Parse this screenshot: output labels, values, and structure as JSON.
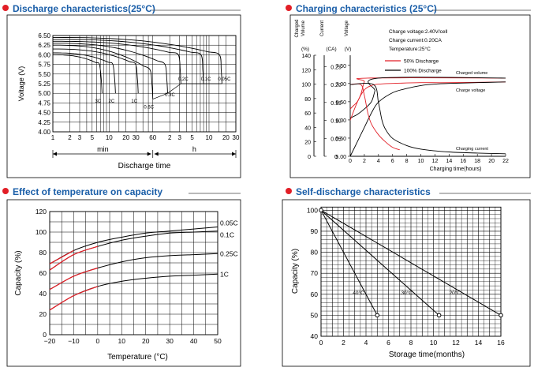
{
  "colors": {
    "title": "#1a5ea8",
    "bullet": "#e21e26",
    "curve_black": "#000000",
    "curve_red": "#e21e26",
    "grid": "#000000"
  },
  "panels": {
    "discharge": {
      "title": "Discharge characteristics(25°C)"
    },
    "charging": {
      "title": "Charging characteristics (25°C)"
    },
    "temperature": {
      "title": "Effect of temperature on capacity"
    },
    "self_discharge": {
      "title": "Self-discharge characteristics"
    }
  },
  "chart_data": [
    {
      "type": "line",
      "title": "Discharge characteristics(25°C)",
      "ylabel": "Voltage (V)",
      "xlabel": "Discharge time",
      "ylim": [
        4.0,
        6.5
      ],
      "yticks": [
        "6.50",
        "6.25",
        "6.00",
        "5.75",
        "5.50",
        "5.25",
        "5.00",
        "4.75",
        "4.50",
        "4.25",
        "4.00"
      ],
      "xticks_min": [
        "1",
        "2",
        "3",
        "5",
        "10",
        "20",
        "30",
        "60"
      ],
      "xticks_h": [
        "2",
        "3",
        "5",
        "10",
        "20",
        "30"
      ],
      "time_unit_labels": [
        "min",
        "h"
      ],
      "grid": true,
      "series": [
        {
          "name": "3C",
          "end_min": 7.5,
          "initial_v": 6.0,
          "final_v": 5.0
        },
        {
          "name": "2C",
          "end_min": 13,
          "initial_v": 6.05,
          "final_v": 5.0
        },
        {
          "name": "1C",
          "end_min": 33,
          "initial_v": 6.15,
          "final_v": 5.0
        },
        {
          "name": "0.6C",
          "end_min": 60,
          "initial_v": 6.25,
          "final_v": 4.85
        },
        {
          "name": "0.3C",
          "end_min": 110,
          "initial_v": 6.3,
          "final_v": 5.0
        },
        {
          "name": "0.2C",
          "end_min": 190,
          "initial_v": 6.35,
          "final_v": 5.25
        },
        {
          "name": "0.1C",
          "end_min": 480,
          "initial_v": 6.4,
          "final_v": 5.25
        },
        {
          "name": "0.05C",
          "end_min": 1020,
          "initial_v": 6.45,
          "final_v": 5.25
        }
      ]
    },
    {
      "type": "line",
      "title": "Charging characteristics (25°C)",
      "xlabel": "Charging time(hours)",
      "xlim": [
        0,
        22
      ],
      "xticks": [
        "0",
        "2",
        "4",
        "6",
        "8",
        "10",
        "12",
        "14",
        "16",
        "18",
        "20",
        "22"
      ],
      "axes": [
        {
          "label": [
            "Charged",
            "Volume"
          ],
          "unit": "(%)",
          "ticks": [
            "140",
            "120",
            "100",
            "80",
            "60",
            "40",
            "20",
            "0"
          ],
          "range": [
            0,
            140
          ]
        },
        {
          "label": [
            "Current"
          ],
          "unit": "(CA)",
          "ticks": [
            "0.25",
            "0.20",
            "0.15",
            "0.10",
            "0.05",
            "0"
          ],
          "range": [
            0,
            0.25
          ]
        },
        {
          "label": [
            "Voltage"
          ],
          "unit": "(V)",
          "ticks": [
            "7.50",
            "7.00",
            "6.50",
            "6.00",
            "5.50",
            "5.00"
          ],
          "range": [
            5.0,
            7.75
          ]
        }
      ],
      "conditions": [
        "Charge voltage:2.40V/cell",
        "Charge current:0.20CA",
        "Temperature:25°C"
      ],
      "legend": [
        {
          "name": "50% Discharge",
          "color": "#e21e26"
        },
        {
          "name": "100% Discharge",
          "color": "#000000"
        }
      ],
      "curve_labels": [
        "Charged volume",
        "Charge voltage",
        "Charging current"
      ],
      "series": [
        {
          "name": "50% Discharge",
          "quantity": "Charge voltage (V)",
          "x": [
            0,
            0.5,
            1,
            1.5,
            2,
            2.5,
            22
          ],
          "y": [
            6.3,
            6.4,
            6.5,
            6.7,
            7.05,
            7.15,
            7.15
          ]
        },
        {
          "name": "100% Discharge",
          "quantity": "Charge voltage (V)",
          "x": [
            0,
            1,
            2,
            3,
            3.5,
            4,
            22
          ],
          "y": [
            6.05,
            6.15,
            6.3,
            6.5,
            6.8,
            7.15,
            7.15
          ]
        },
        {
          "name": "50% Discharge",
          "quantity": "Charged volume (%)",
          "x": [
            0,
            1,
            2,
            3,
            4,
            6,
            10,
            14,
            22
          ],
          "y": [
            50,
            75,
            92,
            98,
            100,
            101,
            102,
            102,
            103
          ]
        },
        {
          "name": "100% Discharge",
          "quantity": "Charged volume (%)",
          "x": [
            0,
            1,
            2,
            3,
            4,
            6,
            8,
            10,
            12,
            14,
            18,
            22
          ],
          "y": [
            0,
            20,
            40,
            60,
            75,
            88,
            94,
            98,
            100,
            101,
            102,
            103
          ]
        },
        {
          "name": "50% Discharge",
          "quantity": "Charging current (CA)",
          "x": [
            0,
            1.5,
            2,
            2.5,
            3,
            4,
            5,
            6,
            7
          ],
          "y": [
            0.2,
            0.2,
            0.17,
            0.12,
            0.09,
            0.06,
            0.04,
            0.025,
            0.018
          ]
        },
        {
          "name": "100% Discharge",
          "quantity": "Charging current (CA)",
          "x": [
            0,
            3.3,
            4,
            4.5,
            5,
            6,
            8,
            10,
            14,
            18,
            22
          ],
          "y": [
            0.2,
            0.2,
            0.15,
            0.1,
            0.075,
            0.05,
            0.03,
            0.02,
            0.012,
            0.009,
            0.007
          ]
        }
      ]
    },
    {
      "type": "line",
      "title": "Effect of temperature on capacity",
      "xlabel": "Temperature (°C)",
      "ylabel": "Capacity (%)",
      "xlim": [
        -20,
        50
      ],
      "ylim": [
        0,
        120
      ],
      "xticks": [
        "−20",
        "−10",
        "0",
        "10",
        "20",
        "30",
        "40",
        "50"
      ],
      "yticks": [
        "120",
        "100",
        "80",
        "60",
        "40",
        "20",
        "0"
      ],
      "grid": true,
      "series": [
        {
          "name": "0.05C",
          "x": [
            -20,
            -10,
            0,
            10,
            20,
            30,
            40,
            50
          ],
          "y": [
            69,
            82,
            90,
            95,
            99,
            101,
            103,
            105
          ],
          "red_x": [
            -20,
            -10
          ],
          "red_y": [
            69,
            82
          ]
        },
        {
          "name": "0.1C",
          "x": [
            -20,
            -10,
            0,
            10,
            20,
            30,
            40,
            50
          ],
          "y": [
            63,
            78,
            86,
            92,
            96,
            99,
            100,
            101
          ],
          "red_x": [
            -20,
            -10,
            0
          ],
          "red_y": [
            63,
            78,
            86
          ]
        },
        {
          "name": "0.25C",
          "x": [
            -20,
            -10,
            0,
            10,
            20,
            30,
            40,
            50
          ],
          "y": [
            44,
            57,
            65,
            71,
            75,
            77,
            78,
            79
          ],
          "red_x": [
            -20,
            -10,
            0
          ],
          "red_y": [
            44,
            57,
            65
          ]
        },
        {
          "name": "1C",
          "x": [
            -20,
            -10,
            0,
            10,
            20,
            30,
            40,
            50
          ],
          "y": [
            24,
            38,
            47,
            52,
            55,
            57,
            58,
            59
          ],
          "red_x": [
            -20,
            -10,
            0
          ],
          "red_y": [
            24,
            38,
            47
          ]
        }
      ]
    },
    {
      "type": "line",
      "title": "Self-discharge characteristics",
      "xlabel": "Storage time(months)",
      "ylabel": "Capacity (%)",
      "xlim": [
        0,
        16
      ],
      "ylim": [
        40,
        100
      ],
      "xticks": [
        "0",
        "2",
        "4",
        "6",
        "8",
        "10",
        "12",
        "14",
        "16"
      ],
      "yticks": [
        "100",
        "90",
        "80",
        "70",
        "60",
        "50",
        "40"
      ],
      "grid": true,
      "series": [
        {
          "name": "40°C",
          "x": [
            0,
            5
          ],
          "y": [
            100,
            50
          ]
        },
        {
          "name": "30°C",
          "x": [
            0,
            10.5
          ],
          "y": [
            100,
            50
          ]
        },
        {
          "name": "20°C",
          "x": [
            0,
            16
          ],
          "y": [
            100,
            50
          ]
        }
      ]
    }
  ]
}
